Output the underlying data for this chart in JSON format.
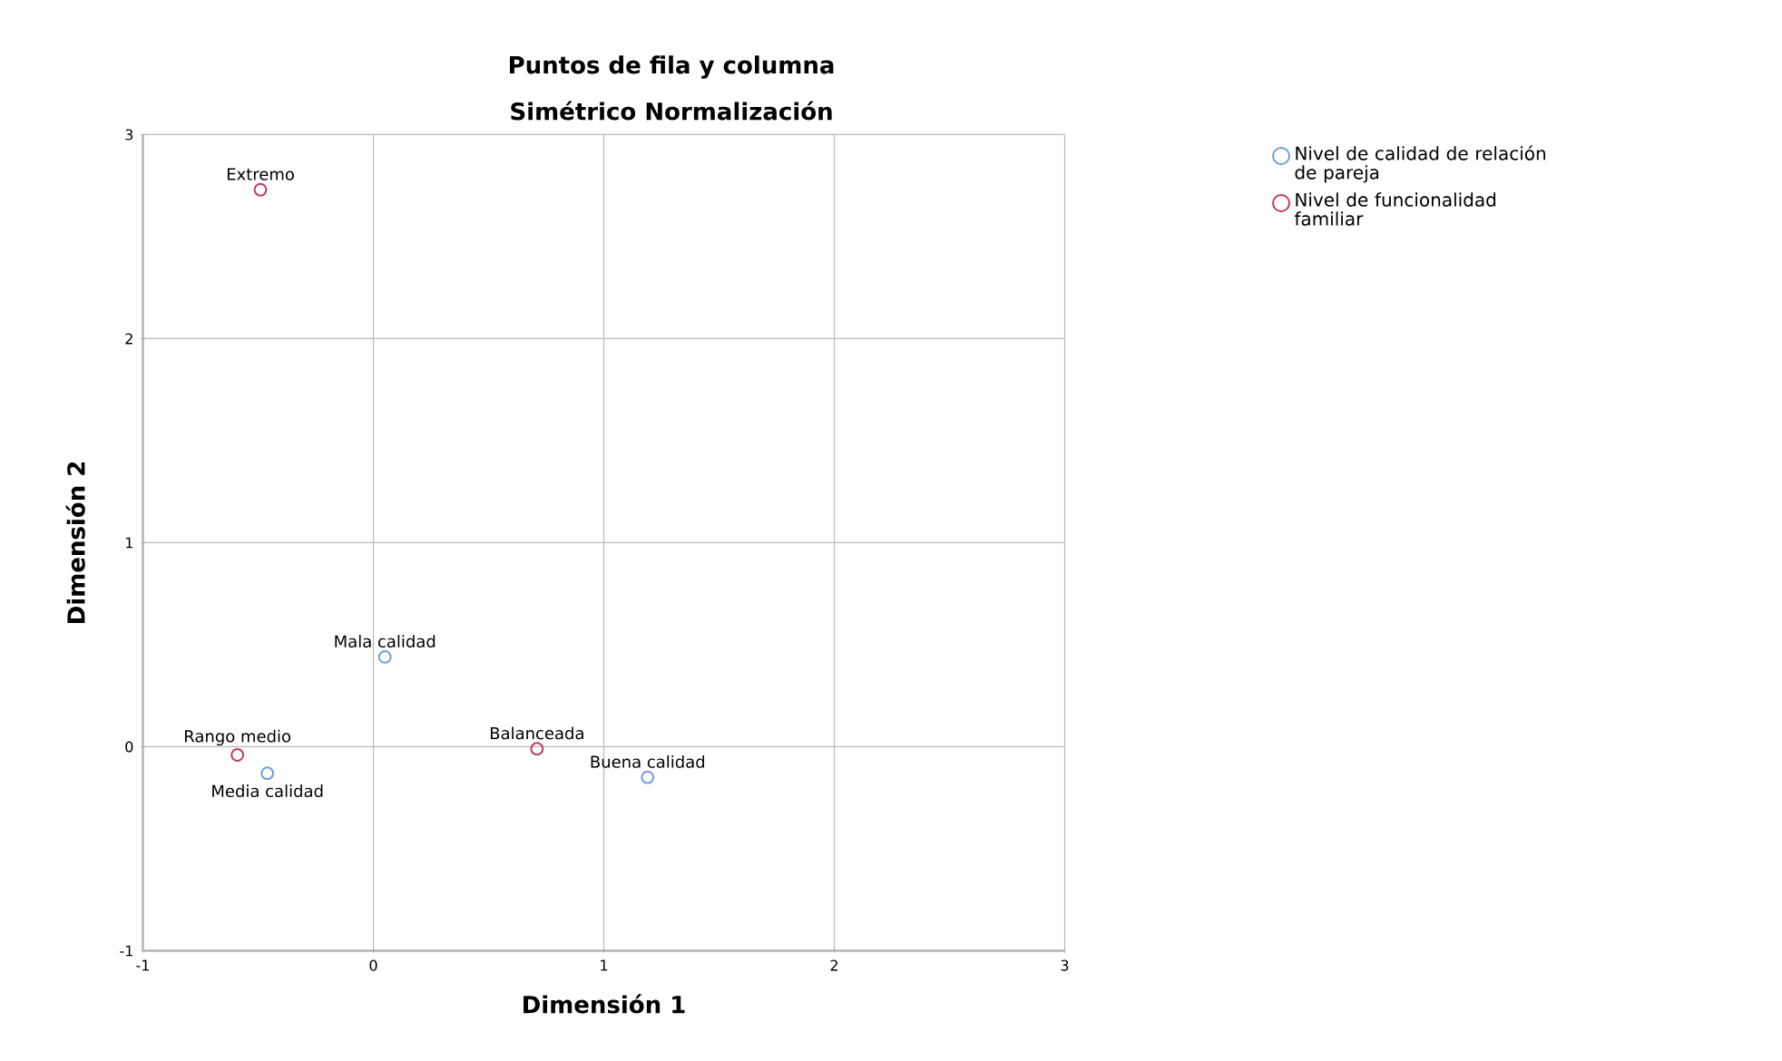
{
  "chart_data": {
    "type": "scatter",
    "title": "Puntos de fila y columna",
    "subtitle": "Simétrico Normalización",
    "xlabel": "Dimensión 1",
    "ylabel": "Dimensión 2",
    "xlim": [
      -1,
      3
    ],
    "ylim": [
      -1,
      3
    ],
    "xticks": [
      -1,
      0,
      1,
      2,
      3
    ],
    "yticks": [
      -1,
      0,
      1,
      2,
      3
    ],
    "grid": true,
    "legend": "top right",
    "marker": "circle",
    "series": [
      {
        "name": "Nivel de calidad de relación de pareja",
        "color": "#6f9fd8",
        "x": [
          0.05,
          -0.46,
          1.19
        ],
        "values": [
          0.44,
          -0.13,
          -0.15
        ],
        "value_labels": [
          "Mala calidad",
          "Media calidad",
          "Buena calidad"
        ]
      },
      {
        "name": "Nivel de funcionalidad familiar",
        "color": "#c8385e",
        "x": [
          -0.49,
          -0.59,
          0.71
        ],
        "values": [
          2.73,
          -0.04,
          -0.01
        ],
        "value_labels": [
          "Extremo",
          "Rango medio",
          "Balanceada"
        ]
      }
    ]
  }
}
